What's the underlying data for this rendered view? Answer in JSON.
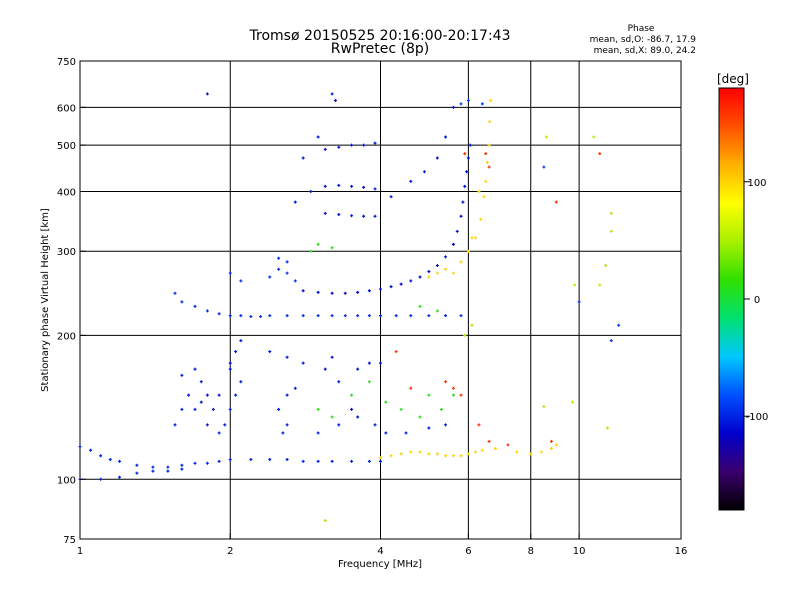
{
  "chart_data": {
    "type": "scatter",
    "title": "Tromsø 20150525 20:16:00-20:17:43",
    "subtitle": "RwPretec (8p)",
    "xlabel": "Frequency [MHz]",
    "ylabel": "Stationary phase Virtual Height [km]",
    "x_scale": "log2",
    "y_scale": "log",
    "xlim": [
      1,
      16
    ],
    "ylim": [
      75,
      750
    ],
    "x_ticks": [
      1,
      2,
      4,
      6,
      8,
      10,
      16
    ],
    "x_tick_labels": [
      "1",
      "2",
      "4",
      "6",
      "8",
      "10",
      "16"
    ],
    "x_grid": [
      2,
      4,
      6,
      8,
      10
    ],
    "y_ticks": [
      75,
      100,
      200,
      300,
      400,
      500,
      600,
      750
    ],
    "y_tick_labels": [
      "75",
      "100",
      "200",
      "300",
      "400",
      "500",
      "600",
      "750"
    ],
    "y_grid": [
      100,
      200,
      300,
      400,
      500,
      600
    ],
    "grid": true,
    "stats": {
      "heading": "Phase",
      "line_o": "mean, sd,O: -86.7, 17.9",
      "line_x": "mean, sd,X:  89.0, 24.2"
    },
    "colorbar": {
      "label": "[deg]",
      "range": [
        -180,
        180
      ],
      "ticks": [
        100,
        0,
        -100
      ],
      "tick_labels": [
        "100",
        "0",
        "-100"
      ],
      "colormap": [
        "#000000",
        "#3a006e",
        "#0000cc",
        "#0050ff",
        "#00c8ff",
        "#00e070",
        "#30e000",
        "#a8f000",
        "#ffff00",
        "#ffb000",
        "#ff5000",
        "#ff0000"
      ]
    },
    "series": [
      {
        "phase": -100,
        "points": [
          [
            1.0,
            117
          ],
          [
            1.05,
            115
          ],
          [
            1.1,
            112
          ],
          [
            1.15,
            110
          ],
          [
            1.2,
            109
          ],
          [
            1.3,
            107
          ],
          [
            1.4,
            106
          ],
          [
            1.5,
            106
          ],
          [
            1.6,
            107
          ],
          [
            1.7,
            108
          ],
          [
            1.8,
            108
          ],
          [
            1.9,
            109
          ],
          [
            2.0,
            110
          ],
          [
            2.2,
            110
          ],
          [
            2.4,
            110
          ],
          [
            2.6,
            110
          ],
          [
            2.8,
            109
          ],
          [
            3.0,
            109
          ],
          [
            3.2,
            109
          ],
          [
            3.5,
            109
          ],
          [
            3.8,
            109
          ],
          [
            4.0,
            109
          ],
          [
            1.0,
            100
          ],
          [
            1.1,
            100
          ],
          [
            1.2,
            101
          ],
          [
            1.3,
            103
          ],
          [
            1.4,
            104
          ],
          [
            1.5,
            104
          ],
          [
            1.6,
            105
          ]
        ]
      },
      {
        "phase": -105,
        "points": [
          [
            1.6,
            165
          ],
          [
            1.7,
            170
          ],
          [
            1.75,
            160
          ],
          [
            1.8,
            150
          ],
          [
            1.85,
            140
          ],
          [
            1.9,
            150
          ],
          [
            1.95,
            130
          ],
          [
            2.0,
            140
          ],
          [
            2.05,
            150
          ],
          [
            2.1,
            160
          ],
          [
            2.0,
            175
          ],
          [
            2.05,
            185
          ],
          [
            2.1,
            195
          ],
          [
            2.0,
            170
          ],
          [
            1.7,
            140
          ],
          [
            1.8,
            130
          ],
          [
            1.9,
            125
          ],
          [
            1.75,
            145
          ],
          [
            1.65,
            150
          ],
          [
            1.6,
            140
          ],
          [
            1.55,
            130
          ],
          [
            2.5,
            140
          ],
          [
            2.6,
            150
          ],
          [
            2.7,
            155
          ],
          [
            2.55,
            125
          ],
          [
            2.6,
            130
          ],
          [
            3.0,
            125
          ],
          [
            3.3,
            130
          ],
          [
            3.5,
            140
          ],
          [
            3.6,
            135
          ],
          [
            3.9,
            130
          ],
          [
            4.1,
            125
          ],
          [
            4.5,
            125
          ],
          [
            5.0,
            128
          ],
          [
            5.4,
            130
          ],
          [
            3.3,
            160
          ],
          [
            3.6,
            170
          ],
          [
            3.8,
            175
          ],
          [
            4.0,
            175
          ],
          [
            2.4,
            185
          ],
          [
            2.6,
            180
          ],
          [
            2.8,
            175
          ],
          [
            3.1,
            170
          ],
          [
            3.2,
            180
          ]
        ]
      },
      {
        "phase": -95,
        "points": [
          [
            1.55,
            245
          ],
          [
            1.6,
            235
          ],
          [
            1.7,
            230
          ],
          [
            1.8,
            225
          ],
          [
            1.9,
            222
          ],
          [
            2.0,
            220
          ],
          [
            2.1,
            220
          ],
          [
            2.2,
            219
          ],
          [
            2.3,
            219
          ],
          [
            2.4,
            220
          ],
          [
            2.6,
            220
          ],
          [
            2.8,
            220
          ],
          [
            3.0,
            220
          ],
          [
            3.2,
            220
          ],
          [
            3.4,
            220
          ],
          [
            3.6,
            220
          ],
          [
            3.8,
            220
          ],
          [
            4.0,
            220
          ],
          [
            4.3,
            220
          ],
          [
            4.6,
            220
          ],
          [
            5.0,
            220
          ],
          [
            5.4,
            220
          ],
          [
            5.8,
            220
          ],
          [
            2.0,
            270
          ],
          [
            2.1,
            260
          ],
          [
            2.4,
            265
          ],
          [
            2.5,
            275
          ],
          [
            2.6,
            270
          ],
          [
            2.7,
            260
          ],
          [
            2.6,
            285
          ],
          [
            2.5,
            290
          ]
        ]
      },
      {
        "phase": -110,
        "points": [
          [
            2.8,
            248
          ],
          [
            3.0,
            246
          ],
          [
            3.2,
            245
          ],
          [
            3.4,
            245
          ],
          [
            3.6,
            246
          ],
          [
            3.8,
            248
          ],
          [
            4.0,
            250
          ],
          [
            4.2,
            253
          ],
          [
            4.4,
            256
          ],
          [
            4.6,
            260
          ],
          [
            4.8,
            265
          ],
          [
            5.0,
            272
          ],
          [
            5.2,
            280
          ],
          [
            5.4,
            292
          ],
          [
            5.6,
            310
          ],
          [
            5.7,
            330
          ],
          [
            5.8,
            355
          ],
          [
            5.85,
            380
          ],
          [
            5.9,
            410
          ],
          [
            5.95,
            440
          ],
          [
            6.0,
            470
          ],
          [
            6.05,
            500
          ]
        ]
      },
      {
        "phase": -105,
        "points": [
          [
            3.1,
            360
          ],
          [
            3.3,
            358
          ],
          [
            3.5,
            356
          ],
          [
            3.7,
            355
          ],
          [
            3.9,
            355
          ],
          [
            3.1,
            410
          ],
          [
            3.3,
            412
          ],
          [
            3.5,
            410
          ],
          [
            3.7,
            408
          ],
          [
            3.9,
            405
          ],
          [
            3.1,
            490
          ],
          [
            3.3,
            495
          ],
          [
            3.5,
            500
          ],
          [
            3.7,
            500
          ],
          [
            3.9,
            505
          ],
          [
            3.2,
            640
          ],
          [
            3.25,
            620
          ],
          [
            3.0,
            520
          ],
          [
            2.8,
            470
          ],
          [
            2.7,
            380
          ],
          [
            1.8,
            640
          ],
          [
            2.9,
            400
          ],
          [
            4.2,
            390
          ],
          [
            4.6,
            420
          ],
          [
            4.9,
            440
          ],
          [
            5.2,
            470
          ],
          [
            5.4,
            520
          ],
          [
            5.6,
            600
          ]
        ]
      },
      {
        "phase": 100,
        "points": [
          [
            4.0,
            111
          ],
          [
            4.2,
            112
          ],
          [
            4.4,
            113
          ],
          [
            4.6,
            114
          ],
          [
            4.8,
            114
          ],
          [
            5.0,
            113
          ],
          [
            5.2,
            113
          ],
          [
            5.4,
            112
          ],
          [
            5.6,
            112
          ],
          [
            5.8,
            112
          ],
          [
            6.0,
            113
          ],
          [
            6.2,
            114
          ],
          [
            6.4,
            115
          ],
          [
            6.8,
            116
          ],
          [
            7.5,
            114
          ],
          [
            8.0,
            113
          ],
          [
            8.4,
            114
          ],
          [
            8.8,
            116
          ],
          [
            9.0,
            118
          ],
          [
            5.6,
            270
          ],
          [
            5.8,
            285
          ],
          [
            6.0,
            300
          ],
          [
            6.2,
            320
          ],
          [
            6.35,
            350
          ],
          [
            6.45,
            390
          ],
          [
            6.5,
            420
          ],
          [
            6.55,
            460
          ],
          [
            6.6,
            500
          ],
          [
            6.62,
            560
          ],
          [
            6.65,
            620
          ],
          [
            6.3,
            400
          ],
          [
            6.1,
            320
          ],
          [
            5.0,
            265
          ],
          [
            5.2,
            270
          ],
          [
            5.4,
            275
          ]
        ]
      },
      {
        "phase": 10,
        "points": [
          [
            3.5,
            150
          ],
          [
            3.8,
            160
          ],
          [
            4.1,
            145
          ],
          [
            4.4,
            140
          ],
          [
            4.8,
            135
          ],
          [
            5.0,
            150
          ],
          [
            5.3,
            140
          ],
          [
            5.6,
            150
          ],
          [
            3.0,
            140
          ],
          [
            3.2,
            135
          ],
          [
            2.9,
            300
          ],
          [
            3.0,
            310
          ],
          [
            3.2,
            305
          ],
          [
            4.8,
            230
          ],
          [
            5.2,
            225
          ]
        ]
      },
      {
        "phase": 160,
        "points": [
          [
            4.6,
            155
          ],
          [
            5.4,
            160
          ],
          [
            5.6,
            155
          ],
          [
            5.8,
            150
          ],
          [
            6.3,
            130
          ],
          [
            6.6,
            120
          ],
          [
            4.3,
            185
          ],
          [
            5.9,
            480
          ],
          [
            6.5,
            480
          ],
          [
            6.6,
            450
          ],
          [
            11.0,
            480
          ],
          [
            9.0,
            380
          ],
          [
            8.8,
            120
          ],
          [
            7.2,
            118
          ]
        ]
      },
      {
        "phase": 50,
        "points": [
          [
            8.6,
            520
          ],
          [
            10.7,
            520
          ],
          [
            11.6,
            360
          ],
          [
            11.6,
            330
          ],
          [
            11.3,
            280
          ],
          [
            11.0,
            255
          ],
          [
            9.8,
            255
          ],
          [
            8.5,
            142
          ],
          [
            9.7,
            145
          ],
          [
            11.4,
            128
          ],
          [
            3.1,
            82
          ],
          [
            6.1,
            210
          ],
          [
            5.9,
            200
          ]
        ]
      },
      {
        "phase": -90,
        "points": [
          [
            10.0,
            235
          ],
          [
            12.0,
            210
          ],
          [
            11.6,
            195
          ],
          [
            8.5,
            450
          ],
          [
            5.8,
            610
          ],
          [
            6.0,
            620
          ],
          [
            6.4,
            610
          ]
        ]
      }
    ]
  }
}
